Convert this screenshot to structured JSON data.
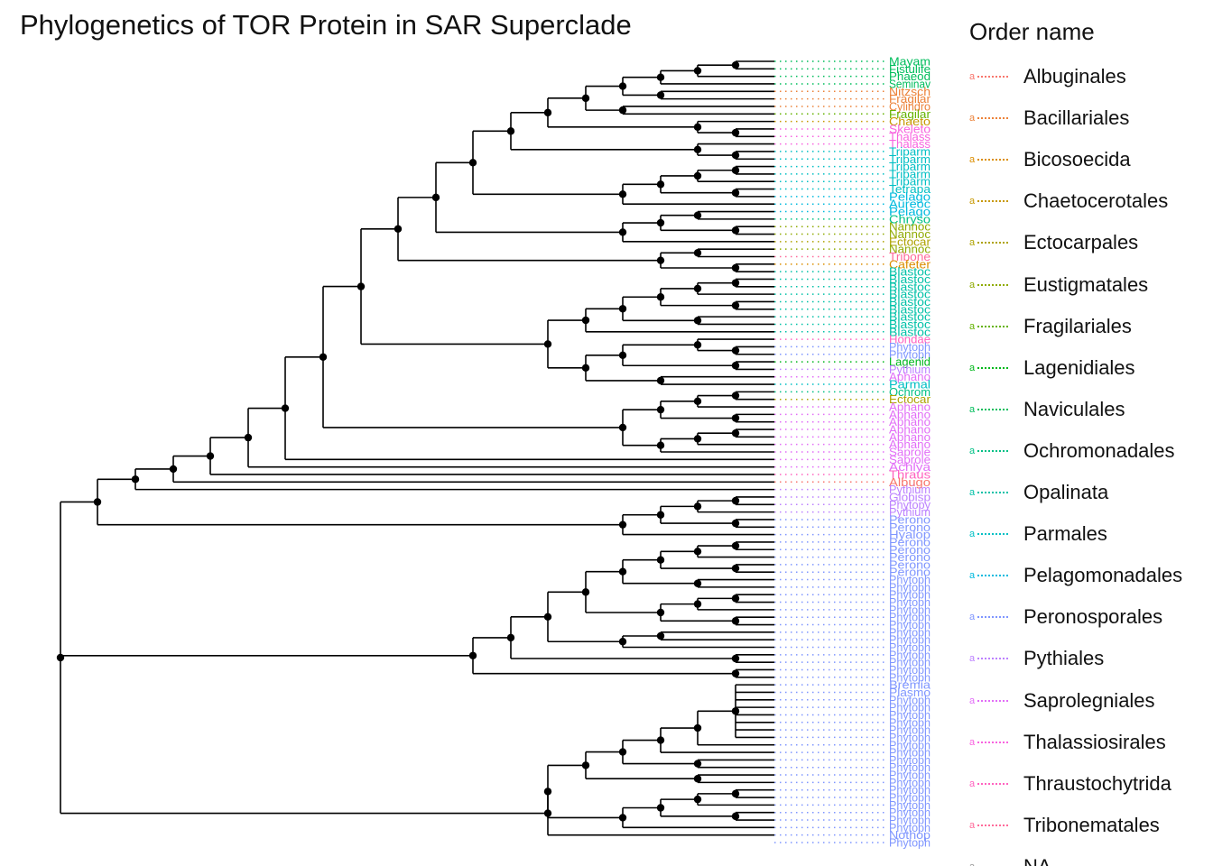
{
  "title": "Phylogenetics of TOR Protein in SAR Superclade",
  "legend": {
    "title": "Order name",
    "key_glyph": "a",
    "items": [
      {
        "label": "Albuginales",
        "color": "#F8766D"
      },
      {
        "label": "Bacillariales",
        "color": "#EC8239"
      },
      {
        "label": "Bicosoecida",
        "color": "#DB8E00"
      },
      {
        "label": "Chaetocerotales",
        "color": "#C79800"
      },
      {
        "label": "Ectocarpales",
        "color": "#AEA200"
      },
      {
        "label": "Eustigmatales",
        "color": "#8FAA00"
      },
      {
        "label": "Fragilariales",
        "color": "#64B200"
      },
      {
        "label": "Lagenidiales",
        "color": "#00B81B"
      },
      {
        "label": "Naviculales",
        "color": "#00BD5C"
      },
      {
        "label": "Ochromonadales",
        "color": "#00C085"
      },
      {
        "label": "Opalinata",
        "color": "#00C1A7"
      },
      {
        "label": "Parmales",
        "color": "#00BFC4"
      },
      {
        "label": "Pelagomonadales",
        "color": "#00BADE"
      },
      {
        "label": "Peronosporales",
        "color": "#7F96FF"
      },
      {
        "label": "Pythiales",
        "color": "#BC81FF"
      },
      {
        "label": "Saprolegniales",
        "color": "#E26EF7"
      },
      {
        "label": "Thalassiosirales",
        "color": "#F863DF"
      },
      {
        "label": "Thraustochytrida",
        "color": "#FF62BF"
      },
      {
        "label": "Tribonematales",
        "color": "#FF6A9A"
      },
      {
        "label": "NA",
        "color": "#999999"
      }
    ]
  },
  "chart_data": {
    "type": "phylogenetic_tree",
    "title": "Phylogenetics of TOR Protein in SAR Superclade",
    "legend_title": "Order name",
    "legend_placement": "right",
    "grid": false,
    "tip_labels": [
      {
        "label": "Mayam",
        "order": "Naviculales"
      },
      {
        "label": "Fistulife",
        "order": "Naviculales"
      },
      {
        "label": "Phaeod",
        "order": "Naviculales"
      },
      {
        "label": "Seminav",
        "order": "Naviculales"
      },
      {
        "label": "Nitzsch",
        "order": "Bacillariales"
      },
      {
        "label": "Fragilar",
        "order": "Bacillariales"
      },
      {
        "label": "Cylindro",
        "order": "Bacillariales"
      },
      {
        "label": "Fragilar",
        "order": "Fragilariales"
      },
      {
        "label": "Chaeto",
        "order": "Chaetocerotales"
      },
      {
        "label": "Skeleto",
        "order": "Thalassiosirales"
      },
      {
        "label": "Thalass",
        "order": "Thalassiosirales"
      },
      {
        "label": "Thalass",
        "order": "Thalassiosirales"
      },
      {
        "label": "Triparm",
        "order": "Parmales"
      },
      {
        "label": "Triparm",
        "order": "Parmales"
      },
      {
        "label": "Triparm",
        "order": "Parmales"
      },
      {
        "label": "Triparm",
        "order": "Parmales"
      },
      {
        "label": "Triparm",
        "order": "Parmales"
      },
      {
        "label": "Tetrapa",
        "order": "Parmales"
      },
      {
        "label": "Pelago",
        "order": "Pelagomonadales"
      },
      {
        "label": "Aureoc",
        "order": "Pelagomonadales"
      },
      {
        "label": "Pelago",
        "order": "Pelagomonadales"
      },
      {
        "label": "Chryso",
        "order": "Ochromonadales"
      },
      {
        "label": "Nannoc",
        "order": "Eustigmatales"
      },
      {
        "label": "Nannoc",
        "order": "Eustigmatales"
      },
      {
        "label": "Ectocar",
        "order": "Ectocarpales"
      },
      {
        "label": "Nannoc",
        "order": "Eustigmatales"
      },
      {
        "label": "Tribone",
        "order": "Tribonematales"
      },
      {
        "label": "Cafeter",
        "order": "Bicosoecida"
      },
      {
        "label": "Blastoc",
        "order": "Opalinata"
      },
      {
        "label": "Blastoc",
        "order": "Opalinata"
      },
      {
        "label": "Blastoc",
        "order": "Opalinata"
      },
      {
        "label": "Blastoc",
        "order": "Opalinata"
      },
      {
        "label": "Blastoc",
        "order": "Opalinata"
      },
      {
        "label": "Blastoc",
        "order": "Opalinata"
      },
      {
        "label": "Blastoc",
        "order": "Opalinata"
      },
      {
        "label": "Blastoc",
        "order": "Opalinata"
      },
      {
        "label": "Blastoc",
        "order": "Opalinata"
      },
      {
        "label": "Hondae",
        "order": "Thraustochytrida"
      },
      {
        "label": "Phytoph",
        "order": "Peronosporales"
      },
      {
        "label": "Phytoph",
        "order": "Peronosporales"
      },
      {
        "label": "Lagenid",
        "order": "Lagenidiales"
      },
      {
        "label": "Pythium",
        "order": "Pythiales"
      },
      {
        "label": "Aphano",
        "order": "Saprolegniales"
      },
      {
        "label": "Parmal",
        "order": "Parmales"
      },
      {
        "label": "Ochrom",
        "order": "Ochromonadales"
      },
      {
        "label": "Ectocar",
        "order": "Ectocarpales"
      },
      {
        "label": "Aphano",
        "order": "Saprolegniales"
      },
      {
        "label": "Aphano",
        "order": "Saprolegniales"
      },
      {
        "label": "Aphano",
        "order": "Saprolegniales"
      },
      {
        "label": "Aphano",
        "order": "Saprolegniales"
      },
      {
        "label": "Aphano",
        "order": "Saprolegniales"
      },
      {
        "label": "Aphano",
        "order": "Saprolegniales"
      },
      {
        "label": "Saprole",
        "order": "Saprolegniales"
      },
      {
        "label": "Saprole",
        "order": "Saprolegniales"
      },
      {
        "label": "Achlya",
        "order": "Saprolegniales"
      },
      {
        "label": "Thraus",
        "order": "Thraustochytrida"
      },
      {
        "label": "Albugo",
        "order": "Albuginales"
      },
      {
        "label": "Pythium",
        "order": "Pythiales"
      },
      {
        "label": "Globisp",
        "order": "Pythiales"
      },
      {
        "label": "Phytopy",
        "order": "Pythiales"
      },
      {
        "label": "Pythium",
        "order": "Pythiales"
      },
      {
        "label": "Perono",
        "order": "Peronosporales"
      },
      {
        "label": "Perono",
        "order": "Peronosporales"
      },
      {
        "label": "Hyalop",
        "order": "Peronosporales"
      },
      {
        "label": "Perono",
        "order": "Peronosporales"
      },
      {
        "label": "Perono",
        "order": "Peronosporales"
      },
      {
        "label": "Perono",
        "order": "Peronosporales"
      },
      {
        "label": "Perono",
        "order": "Peronosporales"
      },
      {
        "label": "Perono",
        "order": "Peronosporales"
      },
      {
        "label": "Phytoph",
        "order": "Peronosporales"
      },
      {
        "label": "Phytoph",
        "order": "Peronosporales"
      },
      {
        "label": "Phytoph",
        "order": "Peronosporales"
      },
      {
        "label": "Phytoph",
        "order": "Peronosporales"
      },
      {
        "label": "Phytoph",
        "order": "Peronosporales"
      },
      {
        "label": "Phytoph",
        "order": "Peronosporales"
      },
      {
        "label": "Phytoph",
        "order": "Peronosporales"
      },
      {
        "label": "Phytoph",
        "order": "Peronosporales"
      },
      {
        "label": "Phytoph",
        "order": "Peronosporales"
      },
      {
        "label": "Phytoph",
        "order": "Peronosporales"
      },
      {
        "label": "Phytoph",
        "order": "Peronosporales"
      },
      {
        "label": "Phytoph",
        "order": "Peronosporales"
      },
      {
        "label": "Phytoph",
        "order": "Peronosporales"
      },
      {
        "label": "Phytoph",
        "order": "Peronosporales"
      },
      {
        "label": "Bremia",
        "order": "Peronosporales"
      },
      {
        "label": "Plasmo",
        "order": "Peronosporales"
      },
      {
        "label": "Phytoph",
        "order": "Peronosporales"
      },
      {
        "label": "Phytoph",
        "order": "Peronosporales"
      },
      {
        "label": "Phytoph",
        "order": "Peronosporales"
      },
      {
        "label": "Phytoph",
        "order": "Peronosporales"
      },
      {
        "label": "Phytoph",
        "order": "Peronosporales"
      },
      {
        "label": "Phytoph",
        "order": "Peronosporales"
      },
      {
        "label": "Phytoph",
        "order": "Peronosporales"
      },
      {
        "label": "Phytoph",
        "order": "Peronosporales"
      },
      {
        "label": "Phytoph",
        "order": "Peronosporales"
      },
      {
        "label": "Phytoph",
        "order": "Peronosporales"
      },
      {
        "label": "Phytoph",
        "order": "Peronosporales"
      },
      {
        "label": "Phytoph",
        "order": "Peronosporales"
      },
      {
        "label": "Phytoph",
        "order": "Peronosporales"
      },
      {
        "label": "Phytoph",
        "order": "Peronosporales"
      },
      {
        "label": "Phytoph",
        "order": "Peronosporales"
      },
      {
        "label": "Phytoph",
        "order": "Peronosporales"
      },
      {
        "label": "Phytoph",
        "order": "Peronosporales"
      },
      {
        "label": "Phytoph",
        "order": "Peronosporales"
      },
      {
        "label": "Nothop",
        "order": "Peronosporales"
      },
      {
        "label": "Phytoph",
        "order": "Peronosporales"
      }
    ]
  }
}
